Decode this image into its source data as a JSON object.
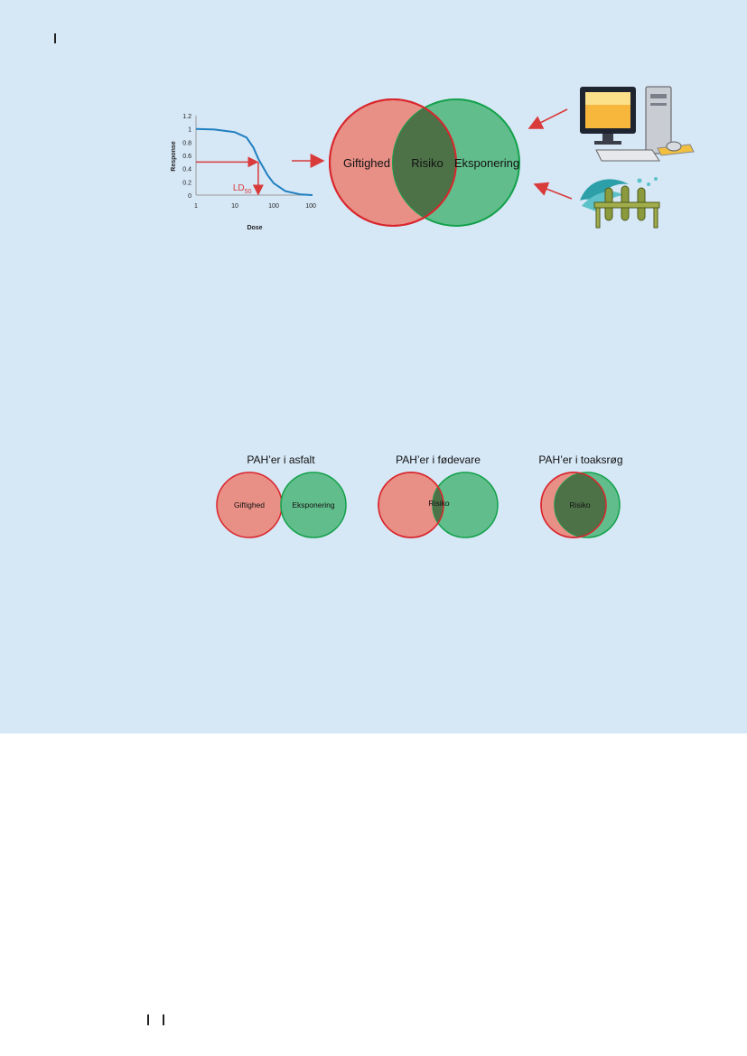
{
  "colors": {
    "panel_bg": "#d6e7f6",
    "toxicity_fill": "#e88f86",
    "toxicity_stroke": "#d9262c",
    "exposure_fill": "#62bd8c",
    "exposure_stroke": "#13a14a",
    "overlap_fill": "#4d7248",
    "curve": "#1f7fc0",
    "arrow": "#d93a3a"
  },
  "chart_data": {
    "type": "line",
    "xlabel": "Dose",
    "ylabel": "Response",
    "x_scale": "log",
    "xlim": [
      1,
      1000
    ],
    "ylim": [
      0,
      1.2
    ],
    "x_ticks": [
      "1",
      "10",
      "100",
      "1000"
    ],
    "y_ticks": [
      "0",
      "0.2",
      "0.4",
      "0.6",
      "0.8",
      "1",
      "1.2"
    ],
    "series": [
      {
        "x": [
          1,
          3,
          10,
          20,
          30,
          40,
          50,
          70,
          100,
          200,
          500,
          1000
        ],
        "y": [
          1,
          0.99,
          0.95,
          0.87,
          0.72,
          0.55,
          0.45,
          0.3,
          0.18,
          0.06,
          0.01,
          0
        ]
      }
    ],
    "annotation": {
      "label": "LD",
      "subscript": "50",
      "x": 40,
      "y": 0.5
    }
  },
  "main_venn": {
    "left_label": "Giftighed",
    "overlap_label": "Risiko",
    "right_label": "Eksponering"
  },
  "small_venns": [
    {
      "title": "PAH’er i asfalt",
      "left_label": "Giftighed",
      "overlap_label": "",
      "right_label": "Eksponering"
    },
    {
      "title": "PAH’er i fødevare",
      "left_label": "",
      "overlap_label": "Risiko",
      "right_label": ""
    },
    {
      "title": "PAH’er i toaksrøg",
      "left_label": "",
      "overlap_label": "Risiko",
      "right_label": ""
    }
  ],
  "icons": {
    "top_right": "computer-icon",
    "bottom_right": "test-tubes-icon"
  }
}
